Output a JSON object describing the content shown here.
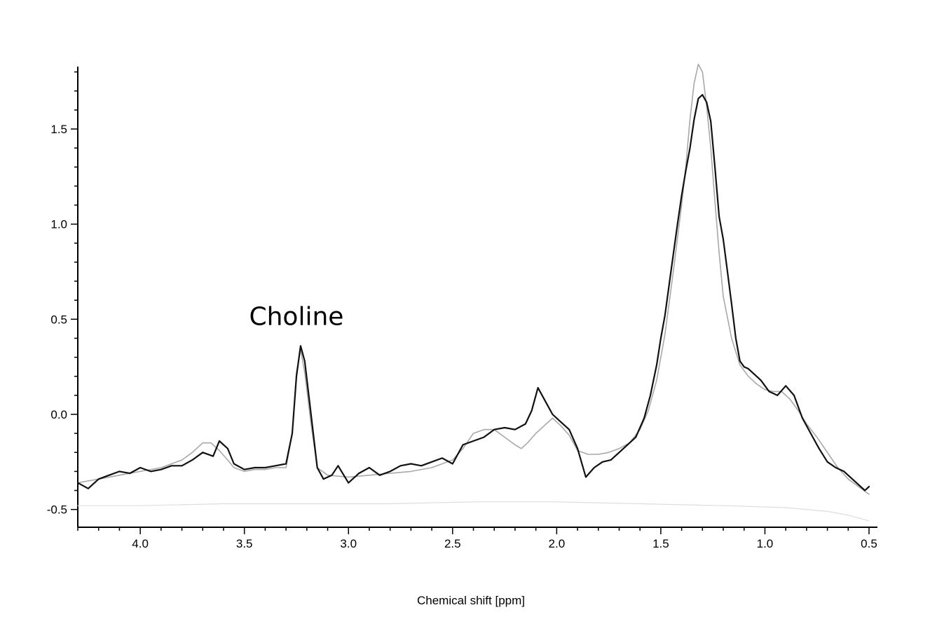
{
  "chart_data": {
    "type": "line",
    "title": "",
    "xlabel": "Chemical shift [ppm]",
    "ylabel": "",
    "xlim": [
      4.3,
      0.5
    ],
    "ylim": [
      -0.58,
      1.85
    ],
    "x_reversed": true,
    "grid": false,
    "legend": "none",
    "x_ticks": [
      {
        "value": 4.0,
        "label": "4.0"
      },
      {
        "value": 3.5,
        "label": "3.5"
      },
      {
        "value": 3.0,
        "label": "3.0"
      },
      {
        "value": 2.5,
        "label": "2.5"
      },
      {
        "value": 2.0,
        "label": "2.0"
      },
      {
        "value": 1.5,
        "label": "1.5"
      },
      {
        "value": 1.0,
        "label": "1.0"
      },
      {
        "value": 0.5,
        "label": "0.5"
      }
    ],
    "y_ticks": [
      {
        "value": 1.5,
        "label": "1.5"
      },
      {
        "value": 1.0,
        "label": "1.0"
      },
      {
        "value": 0.5,
        "label": "0.5"
      },
      {
        "value": 0.0,
        "label": "0.0"
      },
      {
        "value": -0.5,
        "label": "-0.5"
      }
    ],
    "annotations": [
      {
        "text": "Choline",
        "x": 3.25,
        "y": 0.47
      }
    ],
    "series": [
      {
        "role": "measured spectrum",
        "color": "#111111",
        "x": [
          4.3,
          4.25,
          4.2,
          4.15,
          4.1,
          4.05,
          4.0,
          3.95,
          3.9,
          3.85,
          3.8,
          3.75,
          3.7,
          3.65,
          3.62,
          3.58,
          3.55,
          3.5,
          3.45,
          3.4,
          3.35,
          3.3,
          3.27,
          3.25,
          3.23,
          3.21,
          3.18,
          3.15,
          3.12,
          3.08,
          3.05,
          3.0,
          2.95,
          2.9,
          2.85,
          2.8,
          2.75,
          2.7,
          2.65,
          2.6,
          2.55,
          2.5,
          2.45,
          2.4,
          2.35,
          2.3,
          2.25,
          2.2,
          2.15,
          2.12,
          2.09,
          2.06,
          2.02,
          1.98,
          1.94,
          1.9,
          1.86,
          1.82,
          1.78,
          1.74,
          1.7,
          1.66,
          1.62,
          1.58,
          1.55,
          1.52,
          1.5,
          1.48,
          1.45,
          1.42,
          1.4,
          1.38,
          1.36,
          1.34,
          1.32,
          1.3,
          1.28,
          1.26,
          1.24,
          1.22,
          1.2,
          1.18,
          1.16,
          1.14,
          1.12,
          1.1,
          1.08,
          1.06,
          1.02,
          0.98,
          0.94,
          0.9,
          0.86,
          0.82,
          0.78,
          0.74,
          0.7,
          0.66,
          0.62,
          0.58,
          0.54,
          0.52,
          0.5
        ],
        "y": [
          -0.36,
          -0.39,
          -0.34,
          -0.32,
          -0.3,
          -0.31,
          -0.28,
          -0.3,
          -0.29,
          -0.27,
          -0.27,
          -0.24,
          -0.2,
          -0.22,
          -0.14,
          -0.18,
          -0.26,
          -0.29,
          -0.28,
          -0.28,
          -0.27,
          -0.26,
          -0.1,
          0.2,
          0.36,
          0.28,
          0.0,
          -0.28,
          -0.34,
          -0.32,
          -0.27,
          -0.36,
          -0.31,
          -0.28,
          -0.32,
          -0.3,
          -0.27,
          -0.26,
          -0.27,
          -0.25,
          -0.23,
          -0.26,
          -0.16,
          -0.14,
          -0.12,
          -0.08,
          -0.07,
          -0.08,
          -0.05,
          0.02,
          0.14,
          0.08,
          0.0,
          -0.04,
          -0.08,
          -0.18,
          -0.33,
          -0.28,
          -0.25,
          -0.24,
          -0.2,
          -0.16,
          -0.12,
          -0.02,
          0.1,
          0.26,
          0.4,
          0.52,
          0.76,
          1.0,
          1.15,
          1.28,
          1.4,
          1.55,
          1.66,
          1.68,
          1.64,
          1.54,
          1.3,
          1.04,
          0.92,
          0.75,
          0.58,
          0.4,
          0.28,
          0.25,
          0.24,
          0.22,
          0.18,
          0.12,
          0.1,
          0.15,
          0.1,
          -0.02,
          -0.1,
          -0.18,
          -0.25,
          -0.28,
          -0.3,
          -0.34,
          -0.38,
          -0.4,
          -0.38
        ]
      },
      {
        "role": "fitted spectrum",
        "color": "#a8a8a8",
        "x": [
          4.3,
          4.2,
          4.1,
          4.0,
          3.9,
          3.8,
          3.75,
          3.7,
          3.66,
          3.62,
          3.58,
          3.55,
          3.5,
          3.45,
          3.4,
          3.35,
          3.3,
          3.27,
          3.25,
          3.23,
          3.21,
          3.18,
          3.15,
          3.1,
          3.0,
          2.9,
          2.8,
          2.7,
          2.6,
          2.5,
          2.45,
          2.4,
          2.35,
          2.3,
          2.25,
          2.2,
          2.17,
          2.14,
          2.1,
          2.06,
          2.02,
          1.98,
          1.94,
          1.9,
          1.85,
          1.8,
          1.75,
          1.7,
          1.65,
          1.6,
          1.56,
          1.52,
          1.48,
          1.44,
          1.4,
          1.38,
          1.36,
          1.34,
          1.32,
          1.3,
          1.28,
          1.26,
          1.24,
          1.22,
          1.2,
          1.16,
          1.12,
          1.08,
          1.04,
          1.0,
          0.96,
          0.92,
          0.88,
          0.84,
          0.8,
          0.75,
          0.7,
          0.65,
          0.6,
          0.55,
          0.5
        ],
        "y": [
          -0.36,
          -0.34,
          -0.32,
          -0.3,
          -0.28,
          -0.24,
          -0.2,
          -0.15,
          -0.15,
          -0.19,
          -0.24,
          -0.28,
          -0.3,
          -0.29,
          -0.29,
          -0.28,
          -0.28,
          -0.1,
          0.22,
          0.34,
          0.22,
          -0.05,
          -0.28,
          -0.32,
          -0.33,
          -0.32,
          -0.31,
          -0.3,
          -0.28,
          -0.24,
          -0.18,
          -0.1,
          -0.08,
          -0.08,
          -0.12,
          -0.16,
          -0.18,
          -0.15,
          -0.1,
          -0.06,
          -0.02,
          -0.06,
          -0.11,
          -0.19,
          -0.21,
          -0.21,
          -0.2,
          -0.18,
          -0.15,
          -0.08,
          0.02,
          0.18,
          0.42,
          0.75,
          1.1,
          1.3,
          1.55,
          1.74,
          1.84,
          1.8,
          1.62,
          1.4,
          1.12,
          0.85,
          0.62,
          0.4,
          0.26,
          0.2,
          0.16,
          0.13,
          0.12,
          0.12,
          0.08,
          0.02,
          -0.05,
          -0.12,
          -0.2,
          -0.28,
          -0.34,
          -0.38,
          -0.42
        ]
      },
      {
        "role": "baseline",
        "color": "#dddddd",
        "x": [
          4.3,
          4.0,
          3.6,
          3.2,
          2.8,
          2.4,
          2.2,
          2.0,
          1.6,
          1.2,
          0.9,
          0.7,
          0.6,
          0.5
        ],
        "y": [
          -0.48,
          -0.48,
          -0.47,
          -0.47,
          -0.47,
          -0.46,
          -0.46,
          -0.46,
          -0.47,
          -0.48,
          -0.49,
          -0.51,
          -0.53,
          -0.56
        ]
      }
    ]
  }
}
